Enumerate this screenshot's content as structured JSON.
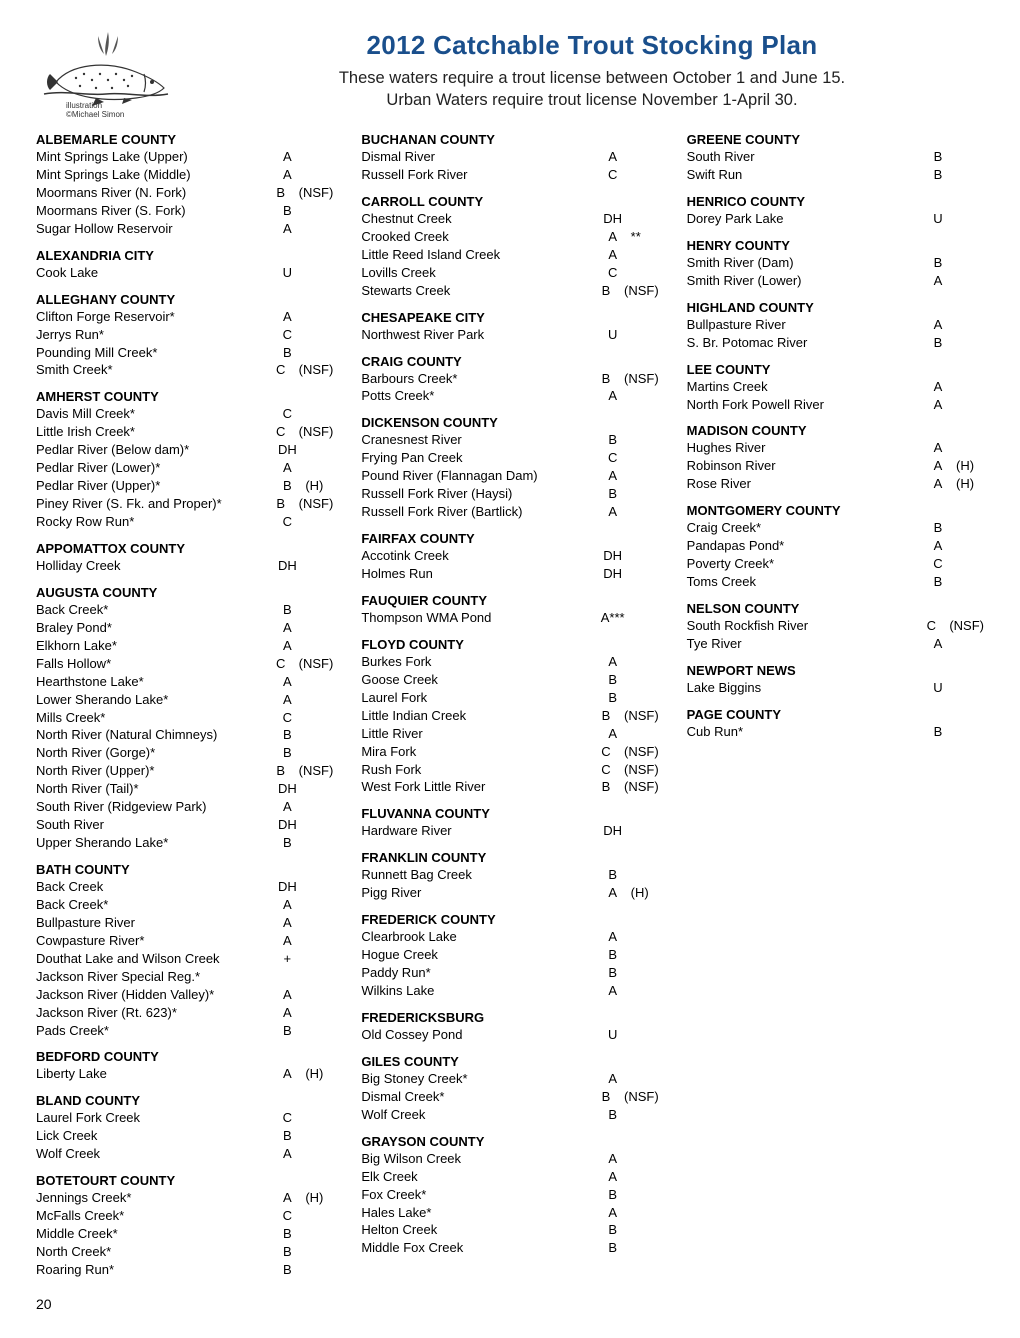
{
  "header": {
    "logo_caption_line1": "illustration",
    "logo_caption_line2": "©Michael Simon",
    "main_title": "2012  Catchable Trout Stocking Plan",
    "subtitle_line1": "These waters require a trout license between October 1 and June 15.",
    "subtitle_line2": "Urban Waters require trout license November 1-April 30."
  },
  "page_number": "20",
  "counties": [
    {
      "name": "ALBEMARLE COUNTY",
      "waters": [
        {
          "name": "Mint Springs Lake (Upper)",
          "code": "A",
          "note": ""
        },
        {
          "name": "Mint Springs Lake (Middle)",
          "code": "A",
          "note": ""
        },
        {
          "name": "Moormans River (N. Fork)",
          "code": "B",
          "note": "(NSF)"
        },
        {
          "name": "Moormans River (S. Fork)",
          "code": "B",
          "note": ""
        },
        {
          "name": "Sugar Hollow Reservoir",
          "code": "A",
          "note": ""
        }
      ]
    },
    {
      "name": "ALEXANDRIA CITY",
      "waters": [
        {
          "name": "Cook Lake",
          "code": "U",
          "note": ""
        }
      ]
    },
    {
      "name": "ALLEGHANY  COUNTY",
      "waters": [
        {
          "name": "Clifton Forge Reservoir*",
          "code": "A",
          "note": ""
        },
        {
          "name": "Jerrys Run*",
          "code": "C",
          "note": ""
        },
        {
          "name": "Pounding Mill Creek*",
          "code": "B",
          "note": ""
        },
        {
          "name": "Smith Creek*",
          "code": "C",
          "note": "(NSF)"
        }
      ]
    },
    {
      "name": "AMHERST COUNTY",
      "waters": [
        {
          "name": "Davis Mill Creek*",
          "code": "C",
          "note": ""
        },
        {
          "name": "Little Irish Creek*",
          "code": "C",
          "note": "(NSF)"
        },
        {
          "name": "Pedlar River (Below dam)*",
          "code": "DH",
          "note": ""
        },
        {
          "name": "Pedlar River (Lower)*",
          "code": "A",
          "note": ""
        },
        {
          "name": "Pedlar River (Upper)*",
          "code": "B",
          "note": "(H)"
        },
        {
          "name": "Piney River  (S. Fk. and Proper)*",
          "code": "B",
          "note": "(NSF)"
        },
        {
          "name": "Rocky Row Run*",
          "code": "C",
          "note": ""
        }
      ]
    },
    {
      "name": "APPOMATTOX COUNTY",
      "waters": [
        {
          "name": "Holliday Creek",
          "code": "DH",
          "note": ""
        }
      ]
    },
    {
      "name": "AUGUSTA COUNTY",
      "waters": [
        {
          "name": "Back Creek*",
          "code": "B",
          "note": ""
        },
        {
          "name": "Braley Pond*",
          "code": "A",
          "note": ""
        },
        {
          "name": "Elkhorn Lake*",
          "code": "A",
          "note": ""
        },
        {
          "name": "Falls Hollow*",
          "code": "C",
          "note": "(NSF)"
        },
        {
          "name": "Hearthstone Lake*",
          "code": "A",
          "note": ""
        },
        {
          "name": "Lower Sherando Lake*",
          "code": "A",
          "note": ""
        },
        {
          "name": "Mills Creek*",
          "code": "C",
          "note": ""
        },
        {
          "name": "North River (Natural Chimneys)",
          "code": "B",
          "note": ""
        },
        {
          "name": "North River (Gorge)*",
          "code": "B",
          "note": ""
        },
        {
          "name": "North River (Upper)*",
          "code": "B",
          "note": "(NSF)"
        },
        {
          "name": "North River (Tail)*",
          "code": "DH",
          "note": ""
        },
        {
          "name": "South River (Ridgeview Park)",
          "code": "A",
          "note": ""
        },
        {
          "name": "South River",
          "code": "DH",
          "note": ""
        },
        {
          "name": "Upper Sherando Lake*",
          "code": "B",
          "note": ""
        }
      ]
    },
    {
      "name": "BATH COUNTY",
      "waters": [
        {
          "name": "Back Creek",
          "code": "DH",
          "note": ""
        },
        {
          "name": "Back Creek*",
          "code": "A",
          "note": ""
        },
        {
          "name": "Bullpasture River",
          "code": "A",
          "note": ""
        },
        {
          "name": "Cowpasture River*",
          "code": "A",
          "note": ""
        },
        {
          "name": "Douthat Lake and Wilson Creek",
          "code": "+",
          "note": ""
        },
        {
          "name": "Jackson River Special Reg.*",
          "code": "",
          "note": ""
        },
        {
          "name": "Jackson River (Hidden Valley)*",
          "code": "A",
          "note": ""
        },
        {
          "name": "Jackson River (Rt. 623)*",
          "code": "A",
          "note": ""
        },
        {
          "name": "Pads Creek*",
          "code": "B",
          "note": ""
        }
      ]
    },
    {
      "name": "BEDFORD COUNTY",
      "waters": [
        {
          "name": "Liberty Lake",
          "code": "A",
          "note": "(H)"
        }
      ]
    },
    {
      "name": "BLAND COUNTY",
      "waters": [
        {
          "name": "Laurel Fork Creek",
          "code": "C",
          "note": ""
        },
        {
          "name": "Lick Creek",
          "code": "B",
          "note": ""
        },
        {
          "name": "Wolf Creek",
          "code": "A",
          "note": ""
        }
      ]
    },
    {
      "name": "BOTETOURT COUNTY",
      "waters": [
        {
          "name": "Jennings Creek*",
          "code": "A",
          "note": "(H)"
        },
        {
          "name": "McFalls Creek*",
          "code": "C",
          "note": ""
        },
        {
          "name": "Middle Creek*",
          "code": "B",
          "note": ""
        },
        {
          "name": "North Creek*",
          "code": "B",
          "note": ""
        },
        {
          "name": "Roaring Run*",
          "code": "B",
          "note": ""
        }
      ]
    },
    {
      "name": "BUCHANAN COUNTY",
      "waters": [
        {
          "name": "Dismal River",
          "code": "A",
          "note": ""
        },
        {
          "name": "Russell Fork River",
          "code": "C",
          "note": ""
        }
      ]
    },
    {
      "name": "CARROLL COUNTY",
      "waters": [
        {
          "name": "Chestnut Creek",
          "code": "DH",
          "note": ""
        },
        {
          "name": "Crooked Creek",
          "code": "A",
          "note": "**"
        },
        {
          "name": "Little Reed Island Creek",
          "code": "A",
          "note": ""
        },
        {
          "name": "Lovills Creek",
          "code": "C",
          "note": ""
        },
        {
          "name": "Stewarts Creek",
          "code": "B",
          "note": "(NSF)"
        }
      ]
    },
    {
      "name": "CHESAPEAKE CITY",
      "waters": [
        {
          "name": "Northwest River Park",
          "code": "U",
          "note": ""
        }
      ]
    },
    {
      "name": "CRAIG COUNTY",
      "waters": [
        {
          "name": "Barbours Creek*",
          "code": "B",
          "note": "(NSF)"
        },
        {
          "name": "Potts Creek*",
          "code": "A",
          "note": ""
        }
      ]
    },
    {
      "name": "DICKENSON COUNTY",
      "waters": [
        {
          "name": "Cranesnest River",
          "code": "B",
          "note": ""
        },
        {
          "name": "Frying Pan Creek",
          "code": "C",
          "note": ""
        },
        {
          "name": "Pound River (Flannagan Dam)",
          "code": "A",
          "note": ""
        },
        {
          "name": "Russell Fork River (Haysi)",
          "code": "B",
          "note": ""
        },
        {
          "name": "Russell Fork River (Bartlick)",
          "code": "A",
          "note": ""
        }
      ]
    },
    {
      "name": "FAIRFAX COUNTY",
      "waters": [
        {
          "name": "Accotink Creek",
          "code": "DH",
          "note": ""
        },
        {
          "name": "Holmes Run",
          "code": "DH",
          "note": ""
        }
      ]
    },
    {
      "name": "FAUQUIER COUNTY",
      "waters": [
        {
          "name": "Thompson WMA Pond",
          "code": "A***",
          "note": ""
        }
      ]
    },
    {
      "name": "FLOYD COUNTY",
      "waters": [
        {
          "name": "Burkes Fork",
          "code": "A",
          "note": ""
        },
        {
          "name": "Goose Creek",
          "code": "B",
          "note": ""
        },
        {
          "name": "Laurel Fork",
          "code": "B",
          "note": ""
        },
        {
          "name": "Little Indian Creek",
          "code": "B",
          "note": "(NSF)"
        },
        {
          "name": "Little River",
          "code": "A",
          "note": ""
        },
        {
          "name": "Mira Fork",
          "code": "C",
          "note": "(NSF)"
        },
        {
          "name": "Rush Fork",
          "code": "C",
          "note": "(NSF)"
        },
        {
          "name": "West Fork Little River",
          "code": "B",
          "note": "(NSF)"
        }
      ]
    },
    {
      "name": "FLUVANNA COUNTY",
      "waters": [
        {
          "name": "Hardware River",
          "code": "DH",
          "note": ""
        }
      ]
    },
    {
      "name": "FRANKLIN COUNTY",
      "waters": [
        {
          "name": "Runnett Bag Creek",
          "code": "B",
          "note": ""
        },
        {
          "name": "Pigg River",
          "code": "A",
          "note": "(H)"
        }
      ]
    },
    {
      "name": "FREDERICK COUNTY",
      "waters": [
        {
          "name": "Clearbrook Lake",
          "code": "A",
          "note": ""
        },
        {
          "name": "Hogue Creek",
          "code": "B",
          "note": ""
        },
        {
          "name": "Paddy Run*",
          "code": "B",
          "note": ""
        },
        {
          "name": "Wilkins Lake",
          "code": "A",
          "note": ""
        }
      ]
    },
    {
      "name": "FREDERICKSBURG",
      "waters": [
        {
          "name": "Old Cossey Pond",
          "code": "U",
          "note": ""
        }
      ]
    },
    {
      "name": "GILES COUNTY",
      "waters": [
        {
          "name": "Big Stoney Creek*",
          "code": "A",
          "note": ""
        },
        {
          "name": "Dismal Creek*",
          "code": "B",
          "note": "(NSF)"
        },
        {
          "name": "Wolf Creek",
          "code": "B",
          "note": ""
        }
      ]
    },
    {
      "name": "GRAYSON COUNTY",
      "waters": [
        {
          "name": "Big Wilson Creek",
          "code": "A",
          "note": ""
        },
        {
          "name": "Elk Creek",
          "code": "A",
          "note": ""
        },
        {
          "name": "Fox Creek*",
          "code": "B",
          "note": ""
        },
        {
          "name": "Hales Lake*",
          "code": "A",
          "note": ""
        },
        {
          "name": "Helton Creek",
          "code": "B",
          "note": ""
        },
        {
          "name": "Middle Fox Creek",
          "code": "B",
          "note": ""
        }
      ]
    },
    {
      "name": "GREENE COUNTY",
      "waters": [
        {
          "name": "South River",
          "code": "B",
          "note": ""
        },
        {
          "name": "Swift Run",
          "code": "B",
          "note": ""
        }
      ]
    },
    {
      "name": "HENRICO COUNTY",
      "waters": [
        {
          "name": "Dorey Park Lake",
          "code": "U",
          "note": ""
        }
      ]
    },
    {
      "name": "HENRY COUNTY",
      "waters": [
        {
          "name": "Smith River (Dam)",
          "code": "B",
          "note": ""
        },
        {
          "name": "Smith River (Lower)",
          "code": "A",
          "note": ""
        }
      ]
    },
    {
      "name": "HIGHLAND COUNTY",
      "waters": [
        {
          "name": "Bullpasture River",
          "code": "A",
          "note": ""
        },
        {
          "name": "S. Br. Potomac River",
          "code": "B",
          "note": ""
        }
      ]
    },
    {
      "name": "LEE COUNTY",
      "waters": [
        {
          "name": "Martins Creek",
          "code": "A",
          "note": ""
        },
        {
          "name": "North Fork Powell River",
          "code": "A",
          "note": ""
        }
      ]
    },
    {
      "name": "MADISON COUNTY",
      "waters": [
        {
          "name": "Hughes River",
          "code": "A",
          "note": ""
        },
        {
          "name": "Robinson River",
          "code": "A",
          "note": "(H)"
        },
        {
          "name": "Rose River",
          "code": "A",
          "note": "(H)"
        }
      ]
    },
    {
      "name": "MONTGOMERY COUNTY",
      "waters": [
        {
          "name": "Craig Creek*",
          "code": "B",
          "note": ""
        },
        {
          "name": "Pandapas Pond*",
          "code": "A",
          "note": ""
        },
        {
          "name": "Poverty Creek*",
          "code": "C",
          "note": ""
        },
        {
          "name": "Toms Creek",
          "code": "B",
          "note": ""
        }
      ]
    },
    {
      "name": "NELSON COUNTY",
      "waters": [
        {
          "name": "South Rockfish River",
          "code": "C",
          "note": "(NSF)"
        },
        {
          "name": "Tye River",
          "code": "A",
          "note": ""
        }
      ]
    },
    {
      "name": "NEWPORT NEWS",
      "waters": [
        {
          "name": "Lake Biggins",
          "code": "U",
          "note": ""
        }
      ]
    },
    {
      "name": "PAGE COUNTY",
      "waters": [
        {
          "name": "Cub Run*",
          "code": "B",
          "note": ""
        }
      ]
    }
  ]
}
